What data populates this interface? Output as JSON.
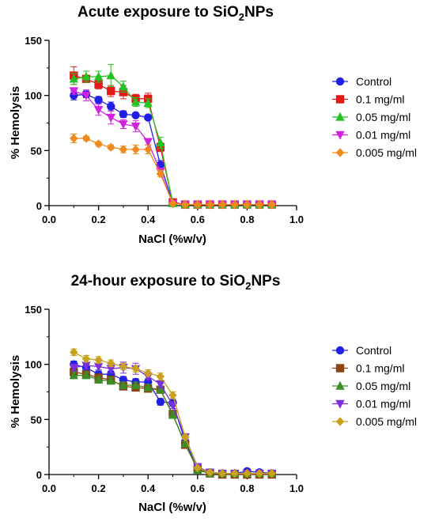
{
  "chart_data": [
    {
      "type": "line",
      "title_pre": "Acute exposure to SiO",
      "title_sub": "2",
      "title_post": "NPs",
      "xlabel": "NaCl (%w/v)",
      "ylabel": "% Hemolysis",
      "xlim": [
        0.0,
        1.0
      ],
      "ylim": [
        0,
        150
      ],
      "xticks": [
        0.0,
        0.2,
        0.4,
        0.6,
        0.8,
        1.0
      ],
      "xtick_labels": [
        "0.0",
        "0.2",
        "0.4",
        "0.6",
        "0.8",
        "1.0"
      ],
      "yticks": [
        0,
        50,
        100,
        150
      ],
      "ytick_labels": [
        "0",
        "50",
        "100",
        "150"
      ],
      "grid": false,
      "legend": "right",
      "x": [
        0.1,
        0.15,
        0.2,
        0.25,
        0.3,
        0.35,
        0.4,
        0.45,
        0.5,
        0.55,
        0.6,
        0.65,
        0.7,
        0.75,
        0.8,
        0.85,
        0.9
      ],
      "series": [
        {
          "name": "Control",
          "marker": "circle",
          "color": "#1f1fe6",
          "values": [
            100,
            101,
            96,
            90,
            83,
            82,
            80,
            37,
            3,
            1,
            1,
            1,
            1,
            1,
            1,
            1,
            1
          ],
          "errors": [
            4,
            3,
            3,
            4,
            3,
            2,
            2,
            4,
            1,
            0,
            0,
            0,
            0,
            0,
            0,
            0,
            0
          ]
        },
        {
          "name": "0.1 mg/ml",
          "marker": "square",
          "color": "#e61919",
          "values": [
            118,
            115,
            110,
            104,
            103,
            97,
            97,
            53,
            3,
            1,
            1,
            1,
            1,
            1,
            1,
            1,
            1
          ],
          "errors": [
            8,
            3,
            4,
            5,
            6,
            4,
            5,
            4,
            1,
            0,
            0,
            0,
            0,
            0,
            0,
            0,
            0
          ]
        },
        {
          "name": "0.05 mg/ml",
          "marker": "triangle-up",
          "color": "#22c322",
          "values": [
            115,
            117,
            117,
            118,
            108,
            94,
            93,
            57,
            2,
            1,
            1,
            1,
            1,
            1,
            1,
            1,
            1
          ],
          "errors": [
            5,
            5,
            5,
            10,
            5,
            4,
            4,
            5,
            1,
            0,
            0,
            0,
            0,
            0,
            0,
            0,
            0
          ]
        },
        {
          "name": "0.01 mg/ml",
          "marker": "triangle-down",
          "color": "#d21fe0",
          "values": [
            104,
            100,
            87,
            80,
            74,
            72,
            58,
            31,
            2,
            1,
            1,
            1,
            1,
            1,
            1,
            1,
            1
          ],
          "errors": [
            3,
            5,
            5,
            6,
            4,
            5,
            3,
            3,
            1,
            0,
            0,
            0,
            0,
            0,
            0,
            0,
            0
          ]
        },
        {
          "name": "0.005 mg/ml",
          "marker": "diamond",
          "color": "#f08a1c",
          "values": [
            61,
            61,
            56,
            53,
            51,
            51,
            51,
            29,
            2,
            1,
            1,
            1,
            1,
            1,
            1,
            1,
            1
          ],
          "errors": [
            4,
            2,
            2,
            2,
            3,
            4,
            4,
            3,
            1,
            0,
            0,
            0,
            0,
            0,
            0,
            0,
            0
          ]
        }
      ]
    },
    {
      "type": "line",
      "title_pre": "24-hour exposure to SiO",
      "title_sub": "2",
      "title_post": "NPs",
      "xlabel": "NaCl (%w/v)",
      "ylabel": "% Hemolysis",
      "xlim": [
        0.0,
        1.0
      ],
      "ylim": [
        0,
        150
      ],
      "xticks": [
        0.0,
        0.2,
        0.4,
        0.6,
        0.8,
        1.0
      ],
      "xtick_labels": [
        "0.0",
        "0.2",
        "0.4",
        "0.6",
        "0.8",
        "1.0"
      ],
      "yticks": [
        0,
        50,
        100,
        150
      ],
      "ytick_labels": [
        "0",
        "50",
        "100",
        "150"
      ],
      "grid": false,
      "legend": "right",
      "x": [
        0.1,
        0.15,
        0.2,
        0.25,
        0.3,
        0.35,
        0.4,
        0.45,
        0.5,
        0.55,
        0.6,
        0.65,
        0.7,
        0.75,
        0.8,
        0.85,
        0.9
      ],
      "series": [
        {
          "name": "Control",
          "marker": "circle",
          "color": "#1f1fe6",
          "values": [
            100,
            97,
            91,
            91,
            86,
            84,
            84,
            66,
            65,
            30,
            6,
            2,
            1,
            1,
            3,
            2,
            1
          ],
          "errors": [
            3,
            3,
            3,
            3,
            3,
            3,
            3,
            3,
            3,
            2,
            1,
            1,
            0,
            0,
            1,
            1,
            0
          ]
        },
        {
          "name": "0.1 mg/ml",
          "marker": "square",
          "color": "#8b4513",
          "values": [
            93,
            91,
            88,
            86,
            80,
            79,
            78,
            77,
            55,
            27,
            5,
            1,
            0,
            0,
            0,
            0,
            0
          ],
          "errors": [
            4,
            3,
            3,
            3,
            3,
            3,
            3,
            3,
            3,
            2,
            1,
            0,
            0,
            0,
            0,
            0,
            0
          ]
        },
        {
          "name": "0.05 mg/ml",
          "marker": "triangle-up",
          "color": "#3c8c28",
          "values": [
            90,
            90,
            86,
            85,
            81,
            81,
            79,
            77,
            54,
            28,
            4,
            1,
            1,
            1,
            1,
            1,
            1
          ],
          "errors": [
            3,
            3,
            3,
            3,
            3,
            3,
            3,
            3,
            3,
            2,
            1,
            0,
            0,
            0,
            0,
            0,
            0
          ]
        },
        {
          "name": "0.01 mg/ml",
          "marker": "triangle-down",
          "color": "#7a2fe0",
          "values": [
            97,
            99,
            98,
            96,
            97,
            96,
            89,
            82,
            63,
            34,
            7,
            2,
            1,
            1,
            1,
            1,
            1
          ],
          "errors": [
            3,
            3,
            3,
            4,
            5,
            5,
            3,
            3,
            3,
            2,
            1,
            1,
            0,
            0,
            0,
            0,
            0
          ]
        },
        {
          "name": "0.005 mg/ml",
          "marker": "diamond",
          "color": "#c8a21c",
          "values": [
            111,
            105,
            104,
            101,
            98,
            96,
            92,
            89,
            72,
            34,
            6,
            2,
            1,
            1,
            1,
            1,
            1
          ],
          "errors": [
            3,
            3,
            3,
            3,
            3,
            3,
            3,
            3,
            3,
            2,
            1,
            1,
            0,
            0,
            0,
            0,
            0
          ]
        }
      ]
    }
  ]
}
